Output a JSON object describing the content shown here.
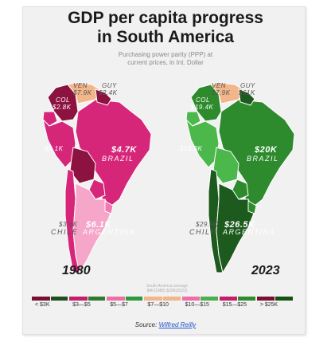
{
  "title_line1": "GDP per capita progress",
  "title_line2": "in South America",
  "subtitle_line1": "Purchasing power parity (PPP) at",
  "subtitle_line2": "current prices, in Int. Dollar",
  "note_line1": "South America average",
  "note_line2": "$4K(1980) $20K(2023)",
  "maps": [
    {
      "year": "1980",
      "labels": {
        "ven": "VEN",
        "ven_value": "$7.9K",
        "guy": "GUY",
        "guy_value": "$2.4K",
        "col": "COL",
        "col_value": "$2.8K",
        "peru_value": "$3.1K",
        "brazil_value": "$4.7K",
        "brazil": "BRAZIL",
        "chile_value": "$3.4K",
        "chile": "CHILE",
        "argentina_value": "$6.1K",
        "argentina": "ARGENTINA"
      }
    },
    {
      "year": "2023",
      "labels": {
        "ven": "VEN",
        "ven_value": "$7.9K",
        "guy": "GUY",
        "guy_value": "$61K",
        "col": "COL",
        "col_value": "$19.4K",
        "peru_value": "$15.8K",
        "brazil_value": "$20K",
        "brazil": "BRAZIL",
        "chile_value": "$29.9K",
        "chile": "CHILE",
        "argentina_value": "$26.5K",
        "argentina": "ARGENTINA"
      }
    }
  ],
  "legend": [
    {
      "label": "< $3K",
      "pink": "#7a0f35",
      "green": "#1e4d1e"
    },
    {
      "label": "$3—$5",
      "pink": "#c41e6a",
      "green": "#2f7a2f"
    },
    {
      "label": "$5—$7",
      "pink": "#ee6fa8",
      "green": "#2b9a3a"
    },
    {
      "label": "$7—$10",
      "pink": "#f3b58a",
      "green": "#f3b58a"
    },
    {
      "label": "$10—$15",
      "pink": "#ee6fa8",
      "green": "#4bb04b"
    },
    {
      "label": "$15—$25",
      "pink": "#c41e6a",
      "green": "#2e8b2e"
    },
    {
      "label": "> $25K",
      "pink": "#7a0f35",
      "green": "#145214"
    }
  ],
  "source_label": "Source:",
  "source_link": "Wilfred Reilly",
  "colors": {
    "pink_dark": "#8c1240",
    "pink_mid": "#d6267a",
    "pink_light": "#f07ab2",
    "pink_pale": "#f5a6c9",
    "peach": "#f3b58a",
    "green_dark": "#1d5a1d",
    "green_mid": "#2d8a2d",
    "green_light": "#4cb84c",
    "green_pale": "#66c866"
  }
}
